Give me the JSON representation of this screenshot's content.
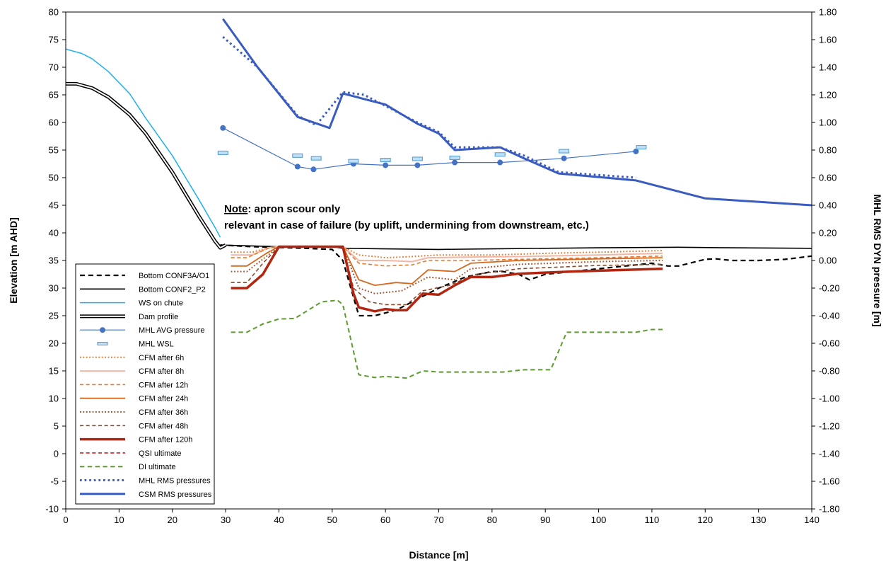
{
  "chart_data": {
    "type": "line",
    "xlabel": "Distance [m]",
    "ylabel": "Elevation [m AHD]",
    "y2label": "MHL RMS DYN pressure [m]",
    "xlim": [
      0,
      140
    ],
    "ylim": [
      -10,
      80
    ],
    "y2lim": [
      -1.8,
      1.8
    ],
    "x_ticks": [
      0,
      10,
      20,
      30,
      40,
      50,
      60,
      70,
      80,
      90,
      100,
      110,
      120,
      130,
      140
    ],
    "y_ticks": [
      -10,
      -5,
      0,
      5,
      10,
      15,
      20,
      25,
      30,
      35,
      40,
      45,
      50,
      55,
      60,
      65,
      70,
      75,
      80
    ],
    "y2_ticks": [
      "-1.80",
      "-1.60",
      "-1.40",
      "-1.20",
      "-1.00",
      "-0.80",
      "-0.60",
      "-0.40",
      "-0.20",
      "0.00",
      "0.20",
      "0.40",
      "0.60",
      "0.80",
      "1.00",
      "1.20",
      "1.40",
      "1.60",
      "1.80"
    ],
    "grid": false,
    "legend_position": "bottom-left",
    "annotation": {
      "underlined": "Note",
      "line1": ": apron scour only",
      "line2": "relevant in case of failure (by uplift, undermining from downstream, etc.)"
    },
    "series": [
      {
        "name": "Bottom CONF3A/O1",
        "color": "#000000",
        "style": "dash",
        "width": 2.2,
        "axis": "left",
        "points": [
          [
            29,
            37.8
          ],
          [
            35,
            37.5
          ],
          [
            45,
            37.2
          ],
          [
            50,
            37
          ],
          [
            52,
            35
          ],
          [
            55,
            25
          ],
          [
            58,
            25
          ],
          [
            62,
            26
          ],
          [
            66,
            28
          ],
          [
            70,
            30
          ],
          [
            75,
            32
          ],
          [
            80,
            33
          ],
          [
            82,
            33
          ],
          [
            85,
            32.5
          ],
          [
            87,
            31.5
          ],
          [
            90,
            32.5
          ],
          [
            95,
            33
          ],
          [
            100,
            33.5
          ],
          [
            105,
            34
          ],
          [
            110,
            34.5
          ],
          [
            113,
            34
          ],
          [
            115,
            34
          ],
          [
            120,
            35.2
          ],
          [
            122,
            35.3
          ],
          [
            125,
            35
          ],
          [
            130,
            35
          ],
          [
            135,
            35.2
          ],
          [
            140,
            35.8
          ]
        ]
      },
      {
        "name": "Bottom CONF2_P2",
        "color": "#000000",
        "style": "solid",
        "width": 1.6,
        "axis": "left",
        "points": [
          [
            29,
            37.8
          ],
          [
            40,
            37.5
          ],
          [
            50,
            37.5
          ],
          [
            52,
            37.2
          ],
          [
            60,
            37.1
          ],
          [
            70,
            37
          ],
          [
            80,
            37.1
          ],
          [
            90,
            37.2
          ],
          [
            100,
            37.3
          ],
          [
            115,
            37.4
          ],
          [
            125,
            37.3
          ],
          [
            140,
            37.2
          ]
        ]
      },
      {
        "name": "WS on chute",
        "color": "#1eb0f0",
        "style": "solid",
        "width": 1.5,
        "axis": "left",
        "points": [
          [
            0,
            73.3
          ],
          [
            3,
            72.5
          ],
          [
            5,
            71.5
          ],
          [
            8,
            69.2
          ],
          [
            12,
            65.2
          ],
          [
            15,
            60.8
          ],
          [
            20,
            54
          ],
          [
            25,
            46
          ],
          [
            28,
            41
          ],
          [
            29,
            39.2
          ]
        ]
      },
      {
        "name": "Dam profile",
        "color": "#000000",
        "style": "double",
        "width": 1.2,
        "axis": "left",
        "points": [
          [
            0,
            67
          ],
          [
            2,
            67
          ],
          [
            5,
            66.2
          ],
          [
            8,
            64.6
          ],
          [
            12,
            61.4
          ],
          [
            15,
            58
          ],
          [
            20,
            51
          ],
          [
            25,
            43
          ],
          [
            28,
            38.5
          ],
          [
            29,
            37.3
          ],
          [
            30,
            37.8
          ]
        ]
      },
      {
        "name": "MHL AVG pressure",
        "color": "#4472c4",
        "style": "solid-marker",
        "width": 1.2,
        "axis": "right",
        "points": [
          [
            29.5,
            0.96
          ],
          [
            43.5,
            0.68
          ],
          [
            46.5,
            0.66
          ],
          [
            54,
            0.7
          ],
          [
            60,
            0.69
          ],
          [
            66,
            0.69
          ],
          [
            73,
            0.71
          ],
          [
            81.5,
            0.71
          ],
          [
            93.5,
            0.74
          ],
          [
            107,
            0.79
          ]
        ]
      },
      {
        "name": "MHL WSL",
        "color": "#4a9ad4",
        "style": "dash-marker",
        "width": 1.2,
        "axis": "left",
        "points": [
          [
            29.5,
            54.5
          ],
          [
            43.5,
            54
          ],
          [
            47,
            53.5
          ],
          [
            54,
            53
          ],
          [
            60,
            53.2
          ],
          [
            66,
            53.4
          ],
          [
            73,
            53.6
          ],
          [
            81.5,
            54.2
          ],
          [
            93.5,
            54.8
          ],
          [
            108,
            55.5
          ]
        ]
      },
      {
        "name": "CFM after 6h",
        "color": "#e07a30",
        "style": "dot",
        "width": 2,
        "axis": "left",
        "points": [
          [
            31,
            36.5
          ],
          [
            35,
            36.5
          ],
          [
            38,
            37.3
          ],
          [
            40,
            37.5
          ],
          [
            52,
            37.5
          ],
          [
            55,
            36
          ],
          [
            60,
            35.5
          ],
          [
            65,
            35.7
          ],
          [
            70,
            36
          ],
          [
            80,
            36
          ],
          [
            90,
            36.3
          ],
          [
            100,
            36.5
          ],
          [
            112,
            36.8
          ]
        ]
      },
      {
        "name": "CFM after 8h",
        "color": "#f4b6a4",
        "style": "solid",
        "width": 2,
        "axis": "left",
        "points": [
          [
            31,
            36
          ],
          [
            35,
            36
          ],
          [
            38,
            37.3
          ],
          [
            40,
            37.5
          ],
          [
            52,
            37.5
          ],
          [
            55,
            35
          ],
          [
            60,
            35
          ],
          [
            65,
            34.8
          ],
          [
            68,
            35.5
          ],
          [
            75,
            35.6
          ],
          [
            85,
            35.7
          ],
          [
            100,
            36
          ],
          [
            112,
            36.3
          ]
        ]
      },
      {
        "name": "CFM after 12h",
        "color": "#e07a30",
        "style": "dash",
        "width": 1.6,
        "axis": "left",
        "points": [
          [
            31,
            35.5
          ],
          [
            34,
            35.5
          ],
          [
            38,
            37.2
          ],
          [
            40,
            37.5
          ],
          [
            52,
            37.5
          ],
          [
            55,
            34.5
          ],
          [
            60,
            34
          ],
          [
            65,
            34.2
          ],
          [
            68,
            35
          ],
          [
            75,
            35
          ],
          [
            85,
            35.2
          ],
          [
            100,
            35.5
          ],
          [
            112,
            35.8
          ]
        ]
      },
      {
        "name": "CFM after 24h",
        "color": "#d2691e",
        "style": "solid",
        "width": 1.8,
        "axis": "left",
        "points": [
          [
            31,
            34
          ],
          [
            34,
            34
          ],
          [
            38,
            36.5
          ],
          [
            40,
            37.5
          ],
          [
            52,
            37.5
          ],
          [
            55,
            31.5
          ],
          [
            58,
            30.5
          ],
          [
            62,
            31
          ],
          [
            65,
            30.8
          ],
          [
            68,
            33.3
          ],
          [
            73,
            33
          ],
          [
            76,
            34.5
          ],
          [
            85,
            35
          ],
          [
            100,
            35.3
          ],
          [
            112,
            35.5
          ]
        ]
      },
      {
        "name": "CFM after 36h",
        "color": "#a0522d",
        "style": "dot",
        "width": 2,
        "axis": "left",
        "points": [
          [
            31,
            33
          ],
          [
            34,
            33
          ],
          [
            38,
            36
          ],
          [
            40,
            37.5
          ],
          [
            52,
            37.5
          ],
          [
            55,
            30
          ],
          [
            58,
            29
          ],
          [
            63,
            29.5
          ],
          [
            68,
            32
          ],
          [
            73,
            31.5
          ],
          [
            76,
            33.5
          ],
          [
            85,
            34.3
          ],
          [
            100,
            34.8
          ],
          [
            112,
            35
          ]
        ]
      },
      {
        "name": "CFM after 48h",
        "color": "#8b4a2b",
        "style": "dash",
        "width": 1.6,
        "axis": "left",
        "points": [
          [
            31,
            31
          ],
          [
            34,
            31
          ],
          [
            37,
            34.5
          ],
          [
            40,
            37.5
          ],
          [
            52,
            37.5
          ],
          [
            54,
            30
          ],
          [
            57,
            27.5
          ],
          [
            60,
            27
          ],
          [
            64,
            27
          ],
          [
            67,
            29.5
          ],
          [
            72,
            30.5
          ],
          [
            77,
            32.5
          ],
          [
            85,
            33.5
          ],
          [
            100,
            34.1
          ],
          [
            112,
            34.3
          ]
        ]
      },
      {
        "name": "CFM after 120h",
        "color": "#b22510",
        "style": "solid",
        "width": 3.5,
        "axis": "left",
        "points": [
          [
            31,
            30
          ],
          [
            34,
            30
          ],
          [
            37,
            32.5
          ],
          [
            40,
            37.5
          ],
          [
            52,
            37.5
          ],
          [
            54,
            29
          ],
          [
            55,
            26.5
          ],
          [
            58,
            25.8
          ],
          [
            60,
            26.2
          ],
          [
            62,
            26
          ],
          [
            64,
            26
          ],
          [
            67,
            29
          ],
          [
            70,
            28.8
          ],
          [
            73,
            30.5
          ],
          [
            76,
            32
          ],
          [
            80,
            32
          ],
          [
            85,
            32.6
          ],
          [
            95,
            33
          ],
          [
            105,
            33.3
          ],
          [
            112,
            33.5
          ]
        ]
      },
      {
        "name": "QSI ultimate",
        "color": "#d02020",
        "style": "dash",
        "width": 1.6,
        "axis": "left",
        "points": []
      },
      {
        "name": "DI ultimate",
        "color": "#5c9c2c",
        "style": "dash",
        "width": 2,
        "axis": "left",
        "points": [
          [
            31,
            22
          ],
          [
            34,
            22
          ],
          [
            37,
            23.5
          ],
          [
            40,
            24.4
          ],
          [
            43,
            24.5
          ],
          [
            48,
            27.5
          ],
          [
            51,
            27.8
          ],
          [
            52,
            27
          ],
          [
            55,
            14.3
          ],
          [
            58,
            13.8
          ],
          [
            60,
            14
          ],
          [
            64,
            13.7
          ],
          [
            67,
            15
          ],
          [
            70,
            14.8
          ],
          [
            75,
            14.8
          ],
          [
            82,
            14.8
          ],
          [
            86,
            15.2
          ],
          [
            91,
            15.2
          ],
          [
            94,
            22
          ],
          [
            100,
            22
          ],
          [
            107,
            22
          ],
          [
            110,
            22.5
          ],
          [
            112,
            22.5
          ]
        ]
      },
      {
        "name": "MHL RMS pressures",
        "color": "#3a5bbf",
        "style": "dot",
        "width": 3,
        "axis": "right",
        "points": [
          [
            29.5,
            1.62
          ],
          [
            36,
            1.4
          ],
          [
            43.5,
            1.05
          ],
          [
            47,
            0.98
          ],
          [
            52,
            1.22
          ],
          [
            56,
            1.2
          ],
          [
            60,
            1.12
          ],
          [
            66,
            1.0
          ],
          [
            70,
            0.93
          ],
          [
            73,
            0.82
          ],
          [
            81.5,
            0.82
          ],
          [
            86,
            0.76
          ],
          [
            92.5,
            0.64
          ],
          [
            107,
            0.6
          ]
        ]
      },
      {
        "name": "CSM RMS pressures",
        "color": "#3a5bbf",
        "style": "solid",
        "width": 3,
        "axis": "right",
        "points": [
          [
            29.5,
            1.75
          ],
          [
            36,
            1.4
          ],
          [
            43.5,
            1.04
          ],
          [
            49.5,
            0.96
          ],
          [
            52,
            1.21
          ],
          [
            56,
            1.17
          ],
          [
            60,
            1.13
          ],
          [
            66,
            0.99
          ],
          [
            70,
            0.92
          ],
          [
            73,
            0.8
          ],
          [
            81.5,
            0.82
          ],
          [
            86,
            0.74
          ],
          [
            92.5,
            0.63
          ],
          [
            107,
            0.58
          ],
          [
            120,
            0.45
          ],
          [
            140,
            0.4
          ]
        ]
      }
    ]
  }
}
